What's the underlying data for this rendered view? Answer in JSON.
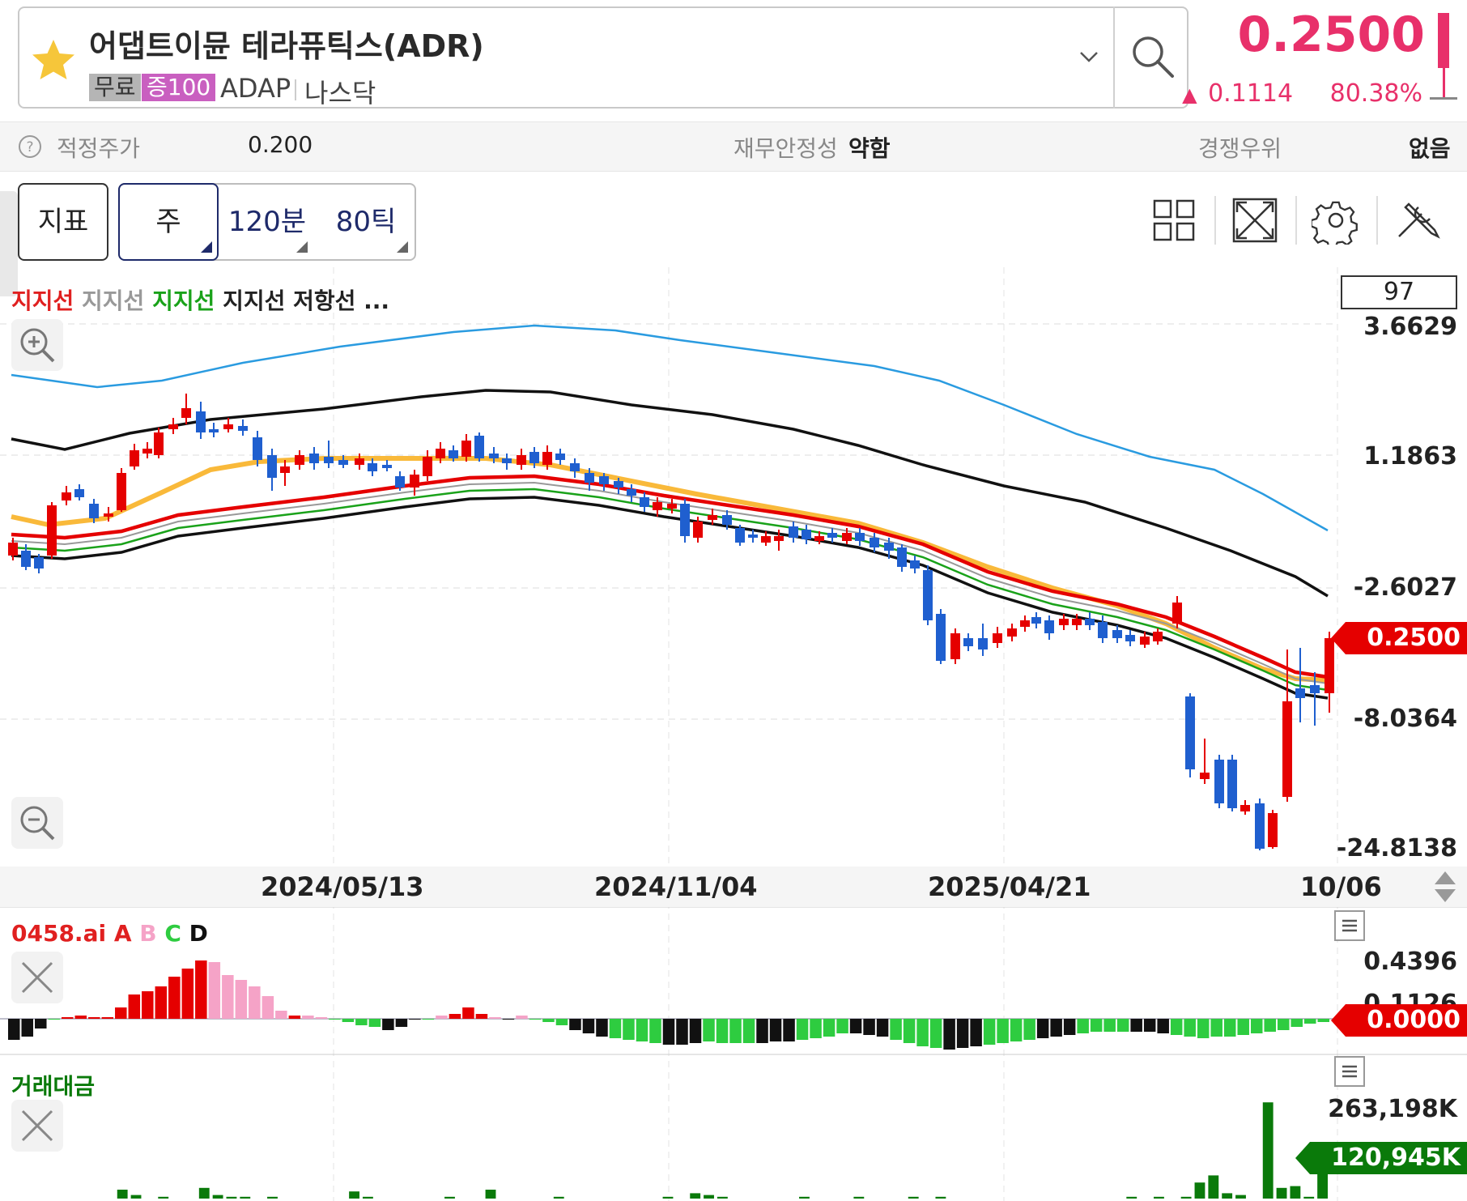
{
  "header": {
    "stock_name": "어댑트이뮨 테라퓨틱스(ADR)",
    "tag_free": "무료",
    "tag_margin": "증100",
    "ticker": "ADAP",
    "market": "나스닥",
    "price": "0.2500",
    "change": "0.1114",
    "change_pct": "80.38%",
    "change_direction_icon": "triangle-up-icon",
    "accent_color": "#e8306a"
  },
  "info": {
    "fair_price_label": "적정주가",
    "fair_price_value": "0.200",
    "stability_label": "재무안정성",
    "stability_value": "약함",
    "advantage_label": "경쟁우위",
    "advantage_value": "없음"
  },
  "toolbar": {
    "indicator_label": "지표",
    "tf_week": "주",
    "tf_120m": "120분",
    "tf_80tick": "80틱",
    "icons": [
      "layout-grid-icon",
      "fullscreen-icon",
      "settings-gear-icon",
      "tools-icon"
    ]
  },
  "chart": {
    "legend": [
      {
        "text": "지지선",
        "color": "#e02020"
      },
      {
        "text": "지지선",
        "color": "#999999"
      },
      {
        "text": "지지선",
        "color": "#1aa21a"
      },
      {
        "text": "지지선",
        "color": "#222222"
      },
      {
        "text": "저항선",
        "color": "#222222"
      },
      {
        "text": "...",
        "color": "#222222"
      }
    ],
    "count": "97",
    "y_labels": [
      "3.6629",
      "1.1863",
      "-2.6027",
      "-8.0364",
      "-24.8138"
    ],
    "current_price_tag": "0.2500",
    "x_labels": [
      "2024/05/13",
      "2024/11/04",
      "2025/04/21",
      "10/06"
    ]
  },
  "oscillator": {
    "title_prefix": "0458.ai",
    "title_letters": [
      {
        "text": "A",
        "color": "#e02020"
      },
      {
        "text": "B",
        "color": "#f5a3c7"
      },
      {
        "text": "C",
        "color": "#2ecc40"
      },
      {
        "text": "D",
        "color": "#111111"
      }
    ],
    "y_labels": [
      "0.4396",
      "0.1126"
    ],
    "current_tag": "0.0000"
  },
  "volume": {
    "title": "거래대금",
    "y_label": "263,198K",
    "current_tag": "120,945K"
  },
  "chart_data": {
    "type": "candlestick",
    "x_ticks": [
      "2024/05/13",
      "2024/11/04",
      "2025/04/21",
      "10/06"
    ],
    "y_ticks": [
      3.6629,
      1.1863,
      -2.6027,
      -8.0364,
      -24.8138
    ],
    "last_price": 0.25,
    "oscillator_ticks": [
      0.4396,
      0.1126,
      0.0
    ],
    "volume_ticks_k": [
      263198,
      120945
    ],
    "grid": true
  }
}
